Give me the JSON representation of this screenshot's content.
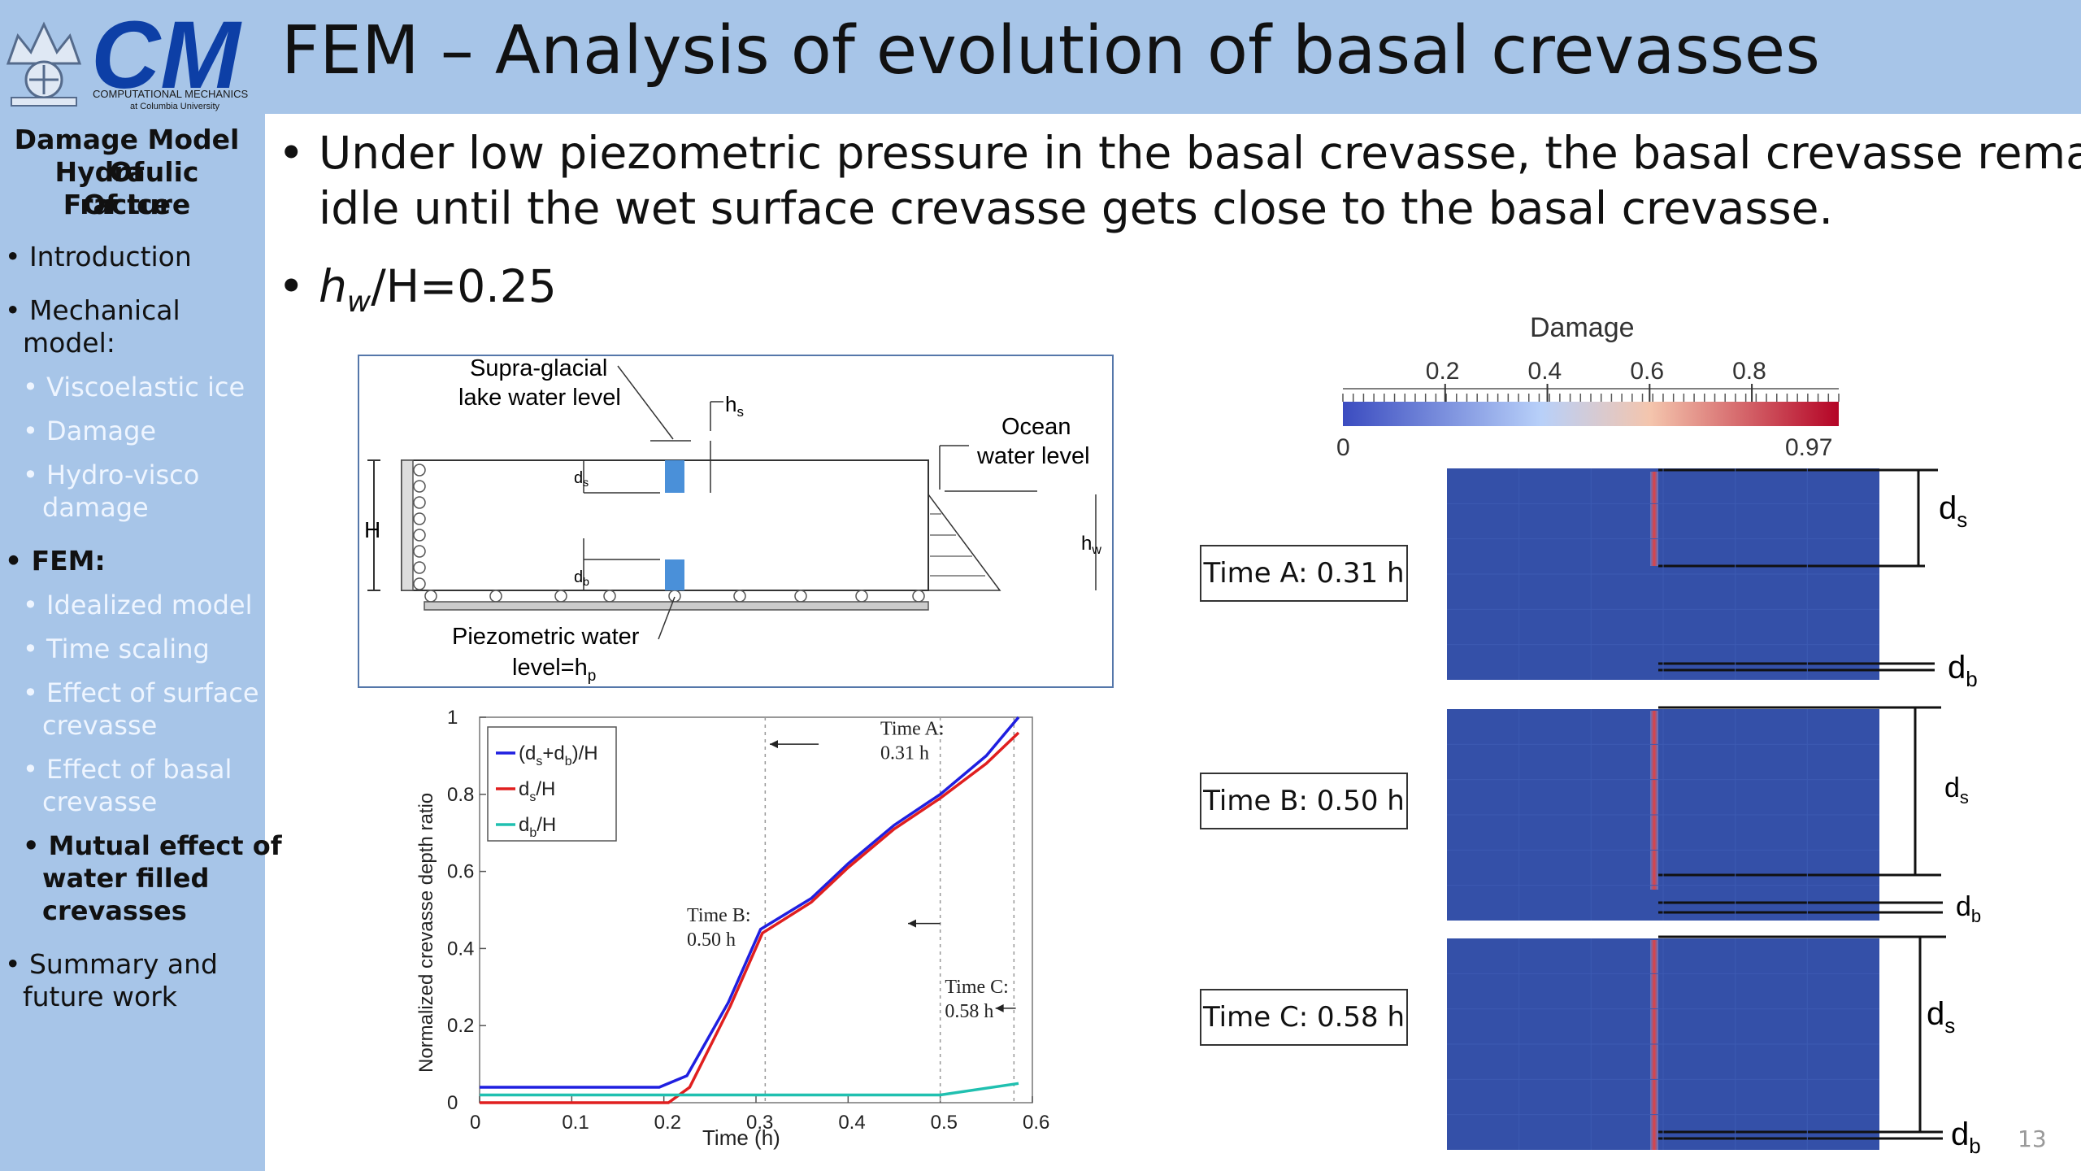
{
  "header": {
    "title": "FEM – Analysis of evolution of basal crevasses",
    "logo_letters": "CM",
    "logo_line1": "COMPUTATIONAL MECHANICS",
    "logo_line2": "at Columbia University"
  },
  "sidebar": {
    "title_lines": [
      "Damage Model Of",
      "Hydraulic Fracture",
      "Of Ice"
    ],
    "items": [
      {
        "label": "• Introduction"
      },
      {
        "label": "• Mechanical",
        "label2": "model:"
      },
      {
        "sub": "• Viscoelastic ice"
      },
      {
        "sub": "• Damage"
      },
      {
        "sub": "• Hydro-visco",
        "sub2": "damage"
      },
      {
        "label": "• FEM:"
      },
      {
        "sub": "• Idealized model"
      },
      {
        "sub": "• Time scaling"
      },
      {
        "sub": "• Effect of surface",
        "sub2": "crevasse"
      },
      {
        "sub": "• Effect of basal",
        "sub2": "crevasse"
      },
      {
        "sub": "• Mutual effect of",
        "sub2": "water filled",
        "sub3": "crevasses"
      },
      {
        "label": "• Summary and",
        "label2": "future work"
      }
    ]
  },
  "main": {
    "bullet1_line1": "Under low piezometric pressure in the basal crevasse, the basal crevasse remains",
    "bullet1_line2": "idle until the wet surface crevasse gets close to the basal crevasse.",
    "bullet2_var": "h",
    "bullet2_sub": "w",
    "bullet2_rest": "/H=0.25"
  },
  "schematic": {
    "lake_label_1": "Supra-glacial",
    "lake_label_2": "lake water level",
    "hs": "h",
    "hs_sub": "s",
    "ocean_label_1": "Ocean",
    "ocean_label_2": "water level",
    "H": "H",
    "ds": "d",
    "ds_sub": "s",
    "db": "d",
    "db_sub": "b",
    "hw": "h",
    "hw_sub": "w",
    "piezo_1": "Piezometric water",
    "piezo_2": "level=h",
    "piezo_sub": "p"
  },
  "chart_data": {
    "type": "line",
    "xlabel": "Time (h)",
    "ylabel": "Normalized crevasse depth ratio",
    "xlim": [
      0,
      0.6
    ],
    "ylim": [
      0,
      1
    ],
    "xticks": [
      "0",
      "0.1",
      "0.2",
      "0.3",
      "0.4",
      "0.5",
      "0.6"
    ],
    "yticks": [
      "0",
      "0.2",
      "0.4",
      "0.6",
      "0.8",
      "1"
    ],
    "grid": false,
    "legend": "top-left",
    "series": [
      {
        "legend_main": "(d",
        "legend_parts": [
          "s",
          "+d",
          "b",
          ")/H"
        ],
        "color": "#1f1fe0",
        "x": [
          0,
          0.195,
          0.225,
          0.27,
          0.305,
          0.36,
          0.4,
          0.45,
          0.5,
          0.55,
          0.585
        ],
        "y": [
          0.04,
          0.04,
          0.07,
          0.26,
          0.45,
          0.53,
          0.62,
          0.72,
          0.8,
          0.9,
          1.0
        ]
      },
      {
        "legend_main": "d",
        "legend_parts": [
          "s",
          "/H"
        ],
        "color": "#e01f1f",
        "x": [
          0,
          0.205,
          0.228,
          0.272,
          0.307,
          0.36,
          0.4,
          0.45,
          0.5,
          0.55,
          0.585
        ],
        "y": [
          0.0,
          0.0,
          0.04,
          0.25,
          0.44,
          0.52,
          0.61,
          0.71,
          0.79,
          0.88,
          0.96
        ]
      },
      {
        "legend_main": "d",
        "legend_parts": [
          "b",
          "/H"
        ],
        "color": "#20c0b0",
        "x": [
          0,
          0.1,
          0.2,
          0.3,
          0.4,
          0.5,
          0.585
        ],
        "y": [
          0.02,
          0.02,
          0.02,
          0.02,
          0.02,
          0.02,
          0.05
        ]
      }
    ],
    "markers_x": [
      0.31,
      0.5,
      0.58
    ],
    "annotations": [
      {
        "line1": "Time A:",
        "line2": "0.31 h"
      },
      {
        "line1": "Time B:",
        "line2": "0.50 h"
      },
      {
        "line1": "Time C:",
        "line2": "0.58 h"
      }
    ]
  },
  "colorbar": {
    "title": "Damage",
    "min_label": "0",
    "max_label": "0.97",
    "tick_labels": [
      "0.2",
      "0.4",
      "0.6",
      "0.8"
    ],
    "colors": [
      "#3b4cc0",
      "#b8d0f9",
      "#f4c5ad",
      "#b40426"
    ]
  },
  "panels": {
    "damage_base": "#3450a8",
    "ds": "d",
    "ds_sub": "s",
    "db": "d",
    "db_sub": "b",
    "time_labels": [
      "Time A: 0.31 h",
      "Time B: 0.50 h",
      "Time C: 0.58 h"
    ]
  },
  "page_number": "13"
}
